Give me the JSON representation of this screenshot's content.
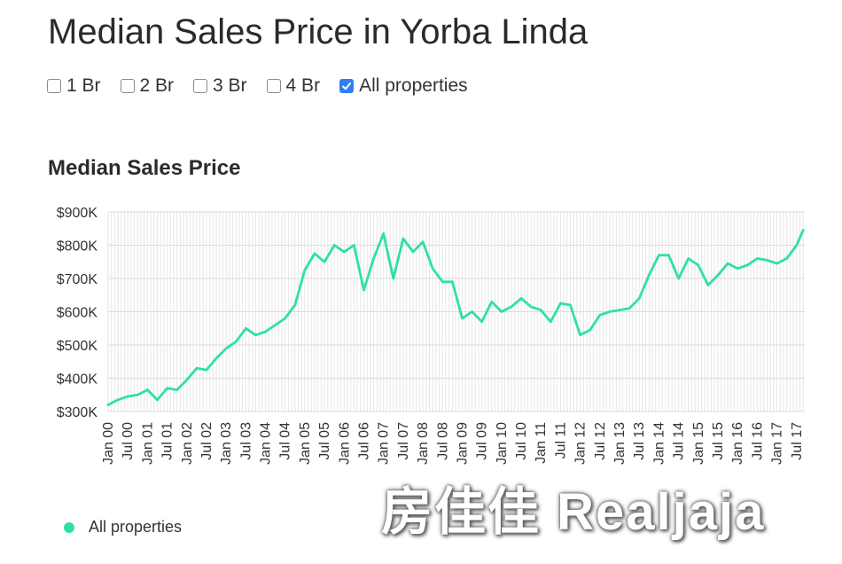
{
  "page": {
    "title": "Median Sales Price in Yorba Linda"
  },
  "filters": [
    {
      "label": "1 Br",
      "checked": false
    },
    {
      "label": "2 Br",
      "checked": false
    },
    {
      "label": "3 Br",
      "checked": false
    },
    {
      "label": "4 Br",
      "checked": false
    },
    {
      "label": "All properties",
      "checked": true
    }
  ],
  "watermark": "房佳佳 Realjaja",
  "chart_data": {
    "type": "line",
    "title": "Median Sales Price",
    "xlabel": "",
    "ylabel": "",
    "ylim": [
      300000,
      900000
    ],
    "yticks": [
      "$300K",
      "$400K",
      "$500K",
      "$600K",
      "$700K",
      "$800K",
      "$900K"
    ],
    "xticks": [
      "Jan 00",
      "Jul 00",
      "Jan 01",
      "Jul 01",
      "Jan 02",
      "Jul 02",
      "Jan 03",
      "Jul 03",
      "Jan 04",
      "Jul 04",
      "Jan 05",
      "Jul 05",
      "Jan 06",
      "Jul 06",
      "Jan 07",
      "Jul 07",
      "Jan 08",
      "Jul 08",
      "Jan 09",
      "Jul 09",
      "Jan 10",
      "Jul 10",
      "Jan 11",
      "Jul 11",
      "Jan 12",
      "Jul 12",
      "Jan 13",
      "Jul 13",
      "Jan 14",
      "Jul 14",
      "Jan 15",
      "Jul 15",
      "Jan 16",
      "Jul 16",
      "Jan 17",
      "Jul 17"
    ],
    "grid": true,
    "legend_position": "bottom-left",
    "color": "#2ee0a8",
    "series": [
      {
        "name": "All properties",
        "x": [
          "2000-01",
          "2000-04",
          "2000-07",
          "2000-10",
          "2001-01",
          "2001-04",
          "2001-07",
          "2001-10",
          "2002-01",
          "2002-04",
          "2002-07",
          "2002-10",
          "2003-01",
          "2003-04",
          "2003-07",
          "2003-10",
          "2004-01",
          "2004-04",
          "2004-07",
          "2004-10",
          "2005-01",
          "2005-04",
          "2005-07",
          "2005-10",
          "2006-01",
          "2006-04",
          "2006-07",
          "2006-10",
          "2007-01",
          "2007-04",
          "2007-07",
          "2007-10",
          "2008-01",
          "2008-04",
          "2008-07",
          "2008-10",
          "2009-01",
          "2009-04",
          "2009-07",
          "2009-10",
          "2010-01",
          "2010-04",
          "2010-07",
          "2010-10",
          "2011-01",
          "2011-04",
          "2011-07",
          "2011-10",
          "2012-01",
          "2012-04",
          "2012-07",
          "2012-10",
          "2013-01",
          "2013-04",
          "2013-07",
          "2013-10",
          "2014-01",
          "2014-04",
          "2014-07",
          "2014-10",
          "2015-01",
          "2015-04",
          "2015-07",
          "2015-10",
          "2016-01",
          "2016-04",
          "2016-07",
          "2016-10",
          "2017-01",
          "2017-04",
          "2017-07",
          "2017-09"
        ],
        "values": [
          320000,
          335000,
          345000,
          350000,
          365000,
          335000,
          370000,
          365000,
          395000,
          430000,
          425000,
          460000,
          490000,
          510000,
          550000,
          530000,
          540000,
          560000,
          580000,
          620000,
          725000,
          775000,
          750000,
          800000,
          780000,
          800000,
          665000,
          760000,
          835000,
          700000,
          820000,
          780000,
          810000,
          730000,
          690000,
          690000,
          580000,
          600000,
          570000,
          630000,
          600000,
          615000,
          640000,
          615000,
          605000,
          570000,
          625000,
          620000,
          530000,
          545000,
          590000,
          600000,
          605000,
          610000,
          640000,
          710000,
          770000,
          770000,
          700000,
          760000,
          740000,
          680000,
          710000,
          745000,
          730000,
          740000,
          760000,
          755000,
          745000,
          760000,
          800000,
          845000
        ]
      }
    ]
  }
}
